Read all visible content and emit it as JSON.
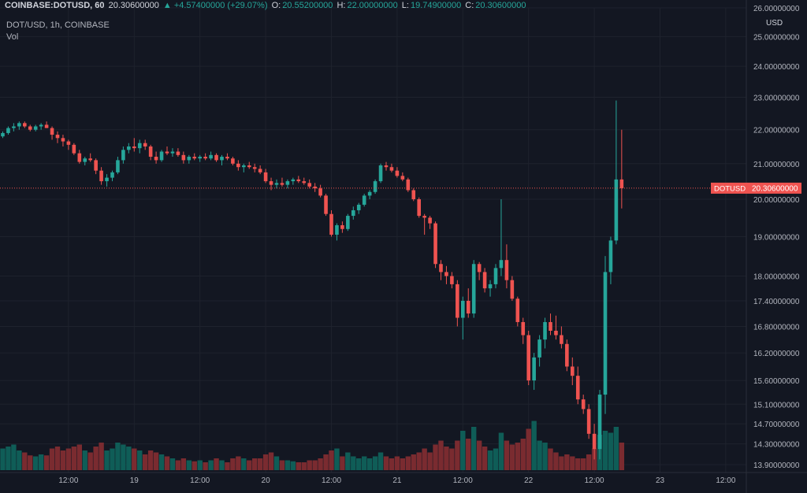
{
  "header": {
    "symbol": "COINBASE:DOTUSD, 60",
    "last": "20.30600000",
    "change": "▲ +4.57400000 (+29.07%)",
    "o_label": "O:",
    "o_value": "20.55200000",
    "h_label": "H:",
    "h_value": "22.00000000",
    "l_label": "L:",
    "l_value": "19.74900000",
    "c_label": "C:",
    "c_value": "20.30600000",
    "series_title": "DOT/USD, 1h, COINBASE",
    "indicator": "Vol"
  },
  "colors": {
    "background": "#131722",
    "grid": "#1e222d",
    "up": "#26a69a",
    "down": "#ef5350",
    "vol_up": "#0f5d57",
    "vol_down": "#7a2b30",
    "text": "#d1d4dc",
    "price_line": "#ef5350"
  },
  "chart_data": {
    "type": "candlestick",
    "currency_label": "USD",
    "price_tag": {
      "symbol": "DOTUSD",
      "value": "20.30600000",
      "price": 20.306
    },
    "y_axis": {
      "scale": "log",
      "range": [
        13.75,
        26.0
      ],
      "ticks": [
        {
          "label": "26.00000000",
          "value": 26.0
        },
        {
          "label": "25.00000000",
          "value": 25.0
        },
        {
          "label": "24.00000000",
          "value": 24.0
        },
        {
          "label": "23.00000000",
          "value": 23.0
        },
        {
          "label": "22.00000000",
          "value": 22.0
        },
        {
          "label": "21.00000000",
          "value": 21.0
        },
        {
          "label": "20.00000000",
          "value": 20.0
        },
        {
          "label": "19.00000000",
          "value": 19.0
        },
        {
          "label": "18.00000000",
          "value": 18.0
        },
        {
          "label": "17.40000000",
          "value": 17.4
        },
        {
          "label": "16.80000000",
          "value": 16.8
        },
        {
          "label": "16.20000000",
          "value": 16.2
        },
        {
          "label": "15.60000000",
          "value": 15.6
        },
        {
          "label": "15.10000000",
          "value": 15.1
        },
        {
          "label": "14.70000000",
          "value": 14.7
        },
        {
          "label": "14.30000000",
          "value": 14.3
        },
        {
          "label": "13.90000000",
          "value": 13.9
        }
      ]
    },
    "x_axis": {
      "ticks": [
        {
          "label": "12:00",
          "bar": 12
        },
        {
          "label": "19",
          "bar": 24
        },
        {
          "label": "12:00",
          "bar": 36
        },
        {
          "label": "20",
          "bar": 48
        },
        {
          "label": "12:00",
          "bar": 60
        },
        {
          "label": "21",
          "bar": 72
        },
        {
          "label": "12:00",
          "bar": 84
        },
        {
          "label": "22",
          "bar": 96
        },
        {
          "label": "12:00",
          "bar": 108
        },
        {
          "label": "23",
          "bar": 120
        },
        {
          "label": "12:00",
          "bar": 132
        }
      ]
    },
    "volume_scale_max": 60,
    "candles": [
      [
        21.8,
        21.95,
        21.75,
        21.9,
        22
      ],
      [
        21.9,
        22.1,
        21.85,
        22.05,
        24
      ],
      [
        22.05,
        22.2,
        21.95,
        22.1,
        26
      ],
      [
        22.1,
        22.25,
        22.0,
        22.2,
        20
      ],
      [
        22.2,
        22.25,
        22.05,
        22.1,
        18
      ],
      [
        22.1,
        22.15,
        21.95,
        22.0,
        15
      ],
      [
        22.0,
        22.15,
        21.95,
        22.1,
        14
      ],
      [
        22.1,
        22.2,
        22.0,
        22.15,
        16
      ],
      [
        22.15,
        22.25,
        22.05,
        22.05,
        15
      ],
      [
        22.05,
        22.1,
        21.7,
        21.85,
        22
      ],
      [
        21.85,
        21.95,
        21.6,
        21.75,
        24
      ],
      [
        21.75,
        21.85,
        21.5,
        21.65,
        20
      ],
      [
        21.65,
        21.7,
        21.4,
        21.55,
        22
      ],
      [
        21.55,
        21.6,
        21.25,
        21.3,
        24
      ],
      [
        21.3,
        21.4,
        21.0,
        21.05,
        26
      ],
      [
        21.05,
        21.2,
        20.95,
        21.15,
        20
      ],
      [
        21.15,
        21.3,
        21.05,
        21.1,
        18
      ],
      [
        21.1,
        21.15,
        20.7,
        20.8,
        24
      ],
      [
        20.8,
        20.9,
        20.4,
        20.5,
        28
      ],
      [
        20.5,
        20.7,
        20.35,
        20.6,
        20
      ],
      [
        20.6,
        20.8,
        20.5,
        20.75,
        22
      ],
      [
        20.75,
        21.2,
        20.7,
        21.1,
        28
      ],
      [
        21.1,
        21.5,
        21.0,
        21.4,
        26
      ],
      [
        21.4,
        21.6,
        21.3,
        21.5,
        24
      ],
      [
        21.5,
        21.75,
        21.35,
        21.45,
        22
      ],
      [
        21.45,
        21.7,
        21.3,
        21.6,
        20
      ],
      [
        21.6,
        21.7,
        21.4,
        21.5,
        16
      ],
      [
        21.5,
        21.55,
        21.1,
        21.2,
        20
      ],
      [
        21.2,
        21.35,
        21.0,
        21.1,
        18
      ],
      [
        21.1,
        21.4,
        21.05,
        21.35,
        16
      ],
      [
        21.35,
        21.5,
        21.25,
        21.3,
        14
      ],
      [
        21.3,
        21.45,
        21.2,
        21.35,
        12
      ],
      [
        21.35,
        21.45,
        21.2,
        21.25,
        10
      ],
      [
        21.25,
        21.35,
        21.0,
        21.1,
        12
      ],
      [
        21.1,
        21.25,
        21.0,
        21.2,
        10
      ],
      [
        21.2,
        21.3,
        21.1,
        21.15,
        9
      ],
      [
        21.15,
        21.25,
        21.05,
        21.2,
        10
      ],
      [
        21.2,
        21.3,
        21.1,
        21.15,
        8
      ],
      [
        21.15,
        21.35,
        21.1,
        21.25,
        10
      ],
      [
        21.25,
        21.3,
        21.05,
        21.1,
        12
      ],
      [
        21.1,
        21.25,
        20.95,
        21.2,
        10
      ],
      [
        21.2,
        21.3,
        21.1,
        21.15,
        8
      ],
      [
        21.15,
        21.2,
        20.95,
        21.0,
        12
      ],
      [
        21.0,
        21.1,
        20.8,
        20.9,
        14
      ],
      [
        20.9,
        21.0,
        20.75,
        20.95,
        12
      ],
      [
        20.95,
        21.05,
        20.85,
        20.9,
        10
      ],
      [
        20.9,
        21.0,
        20.75,
        20.85,
        12
      ],
      [
        20.85,
        20.95,
        20.7,
        20.75,
        12
      ],
      [
        20.75,
        20.85,
        20.45,
        20.5,
        16
      ],
      [
        20.5,
        20.6,
        20.25,
        20.4,
        18
      ],
      [
        20.4,
        20.55,
        20.3,
        20.45,
        14
      ],
      [
        20.45,
        20.6,
        20.35,
        20.4,
        10
      ],
      [
        20.4,
        20.55,
        20.3,
        20.5,
        10
      ],
      [
        20.5,
        20.6,
        20.4,
        20.55,
        9
      ],
      [
        20.55,
        20.65,
        20.45,
        20.5,
        8
      ],
      [
        20.5,
        20.6,
        20.4,
        20.45,
        8
      ],
      [
        20.45,
        20.55,
        20.3,
        20.35,
        10
      ],
      [
        20.35,
        20.45,
        20.2,
        20.3,
        10
      ],
      [
        20.3,
        20.4,
        20.05,
        20.1,
        12
      ],
      [
        20.1,
        20.15,
        19.55,
        19.6,
        16
      ],
      [
        19.6,
        19.7,
        19.0,
        19.05,
        20
      ],
      [
        19.05,
        19.35,
        18.9,
        19.3,
        22
      ],
      [
        19.3,
        19.4,
        19.1,
        19.2,
        14
      ],
      [
        19.2,
        19.6,
        19.15,
        19.55,
        18
      ],
      [
        19.55,
        19.8,
        19.45,
        19.7,
        14
      ],
      [
        19.7,
        19.9,
        19.6,
        19.85,
        12
      ],
      [
        19.85,
        20.15,
        19.8,
        20.1,
        14
      ],
      [
        20.1,
        20.25,
        20.0,
        20.2,
        12
      ],
      [
        20.2,
        20.55,
        20.15,
        20.5,
        14
      ],
      [
        20.5,
        21.0,
        20.45,
        20.95,
        18
      ],
      [
        20.95,
        21.05,
        20.8,
        20.9,
        14
      ],
      [
        20.9,
        21.0,
        20.75,
        20.8,
        12
      ],
      [
        20.8,
        20.9,
        20.6,
        20.65,
        14
      ],
      [
        20.65,
        20.75,
        20.5,
        20.55,
        12
      ],
      [
        20.55,
        20.6,
        20.2,
        20.25,
        14
      ],
      [
        20.25,
        20.3,
        19.95,
        20.0,
        16
      ],
      [
        20.0,
        20.05,
        19.5,
        19.55,
        18
      ],
      [
        19.55,
        19.6,
        19.05,
        19.5,
        22
      ],
      [
        19.5,
        19.55,
        19.2,
        19.35,
        18
      ],
      [
        19.35,
        19.4,
        18.2,
        18.3,
        26
      ],
      [
        18.3,
        18.4,
        17.9,
        18.1,
        30
      ],
      [
        18.1,
        18.25,
        17.8,
        18.0,
        24
      ],
      [
        18.0,
        18.1,
        17.7,
        17.8,
        22
      ],
      [
        17.8,
        17.9,
        16.8,
        17.0,
        30
      ],
      [
        17.0,
        17.5,
        16.5,
        17.4,
        40
      ],
      [
        17.4,
        17.7,
        17.0,
        17.1,
        32
      ],
      [
        17.1,
        18.4,
        17.0,
        18.3,
        44
      ],
      [
        18.3,
        18.35,
        17.9,
        18.1,
        30
      ],
      [
        18.1,
        18.2,
        17.6,
        17.7,
        24
      ],
      [
        17.7,
        17.9,
        17.5,
        17.8,
        20
      ],
      [
        17.8,
        18.3,
        17.7,
        18.2,
        22
      ],
      [
        18.2,
        20.0,
        18.0,
        18.4,
        38
      ],
      [
        18.4,
        18.8,
        17.7,
        17.9,
        30
      ],
      [
        17.9,
        18.0,
        17.4,
        17.45,
        26
      ],
      [
        17.45,
        17.5,
        16.8,
        16.9,
        28
      ],
      [
        16.9,
        17.0,
        16.4,
        16.6,
        32
      ],
      [
        16.6,
        16.7,
        15.5,
        15.6,
        42
      ],
      [
        15.6,
        16.2,
        15.4,
        16.1,
        50
      ],
      [
        16.1,
        16.6,
        15.9,
        16.5,
        30
      ],
      [
        16.5,
        17.0,
        16.3,
        16.9,
        28
      ],
      [
        16.9,
        17.1,
        16.6,
        16.7,
        22
      ],
      [
        16.7,
        17.05,
        16.5,
        16.6,
        18
      ],
      [
        16.6,
        16.8,
        16.3,
        16.4,
        14
      ],
      [
        16.4,
        16.5,
        15.8,
        15.9,
        16
      ],
      [
        15.9,
        16.1,
        15.5,
        15.7,
        14
      ],
      [
        15.7,
        15.9,
        15.1,
        15.2,
        12
      ],
      [
        15.2,
        15.3,
        14.9,
        15.0,
        12
      ],
      [
        15.0,
        15.1,
        14.4,
        14.5,
        16
      ],
      [
        14.5,
        14.7,
        14.0,
        14.2,
        22
      ],
      [
        14.2,
        15.4,
        14.0,
        15.3,
        36
      ],
      [
        15.3,
        18.5,
        14.9,
        18.1,
        40
      ],
      [
        18.1,
        19.0,
        17.8,
        18.9,
        38
      ],
      [
        18.9,
        22.9,
        18.8,
        20.55,
        44
      ],
      [
        20.55,
        22.0,
        19.749,
        20.306,
        28
      ]
    ]
  }
}
